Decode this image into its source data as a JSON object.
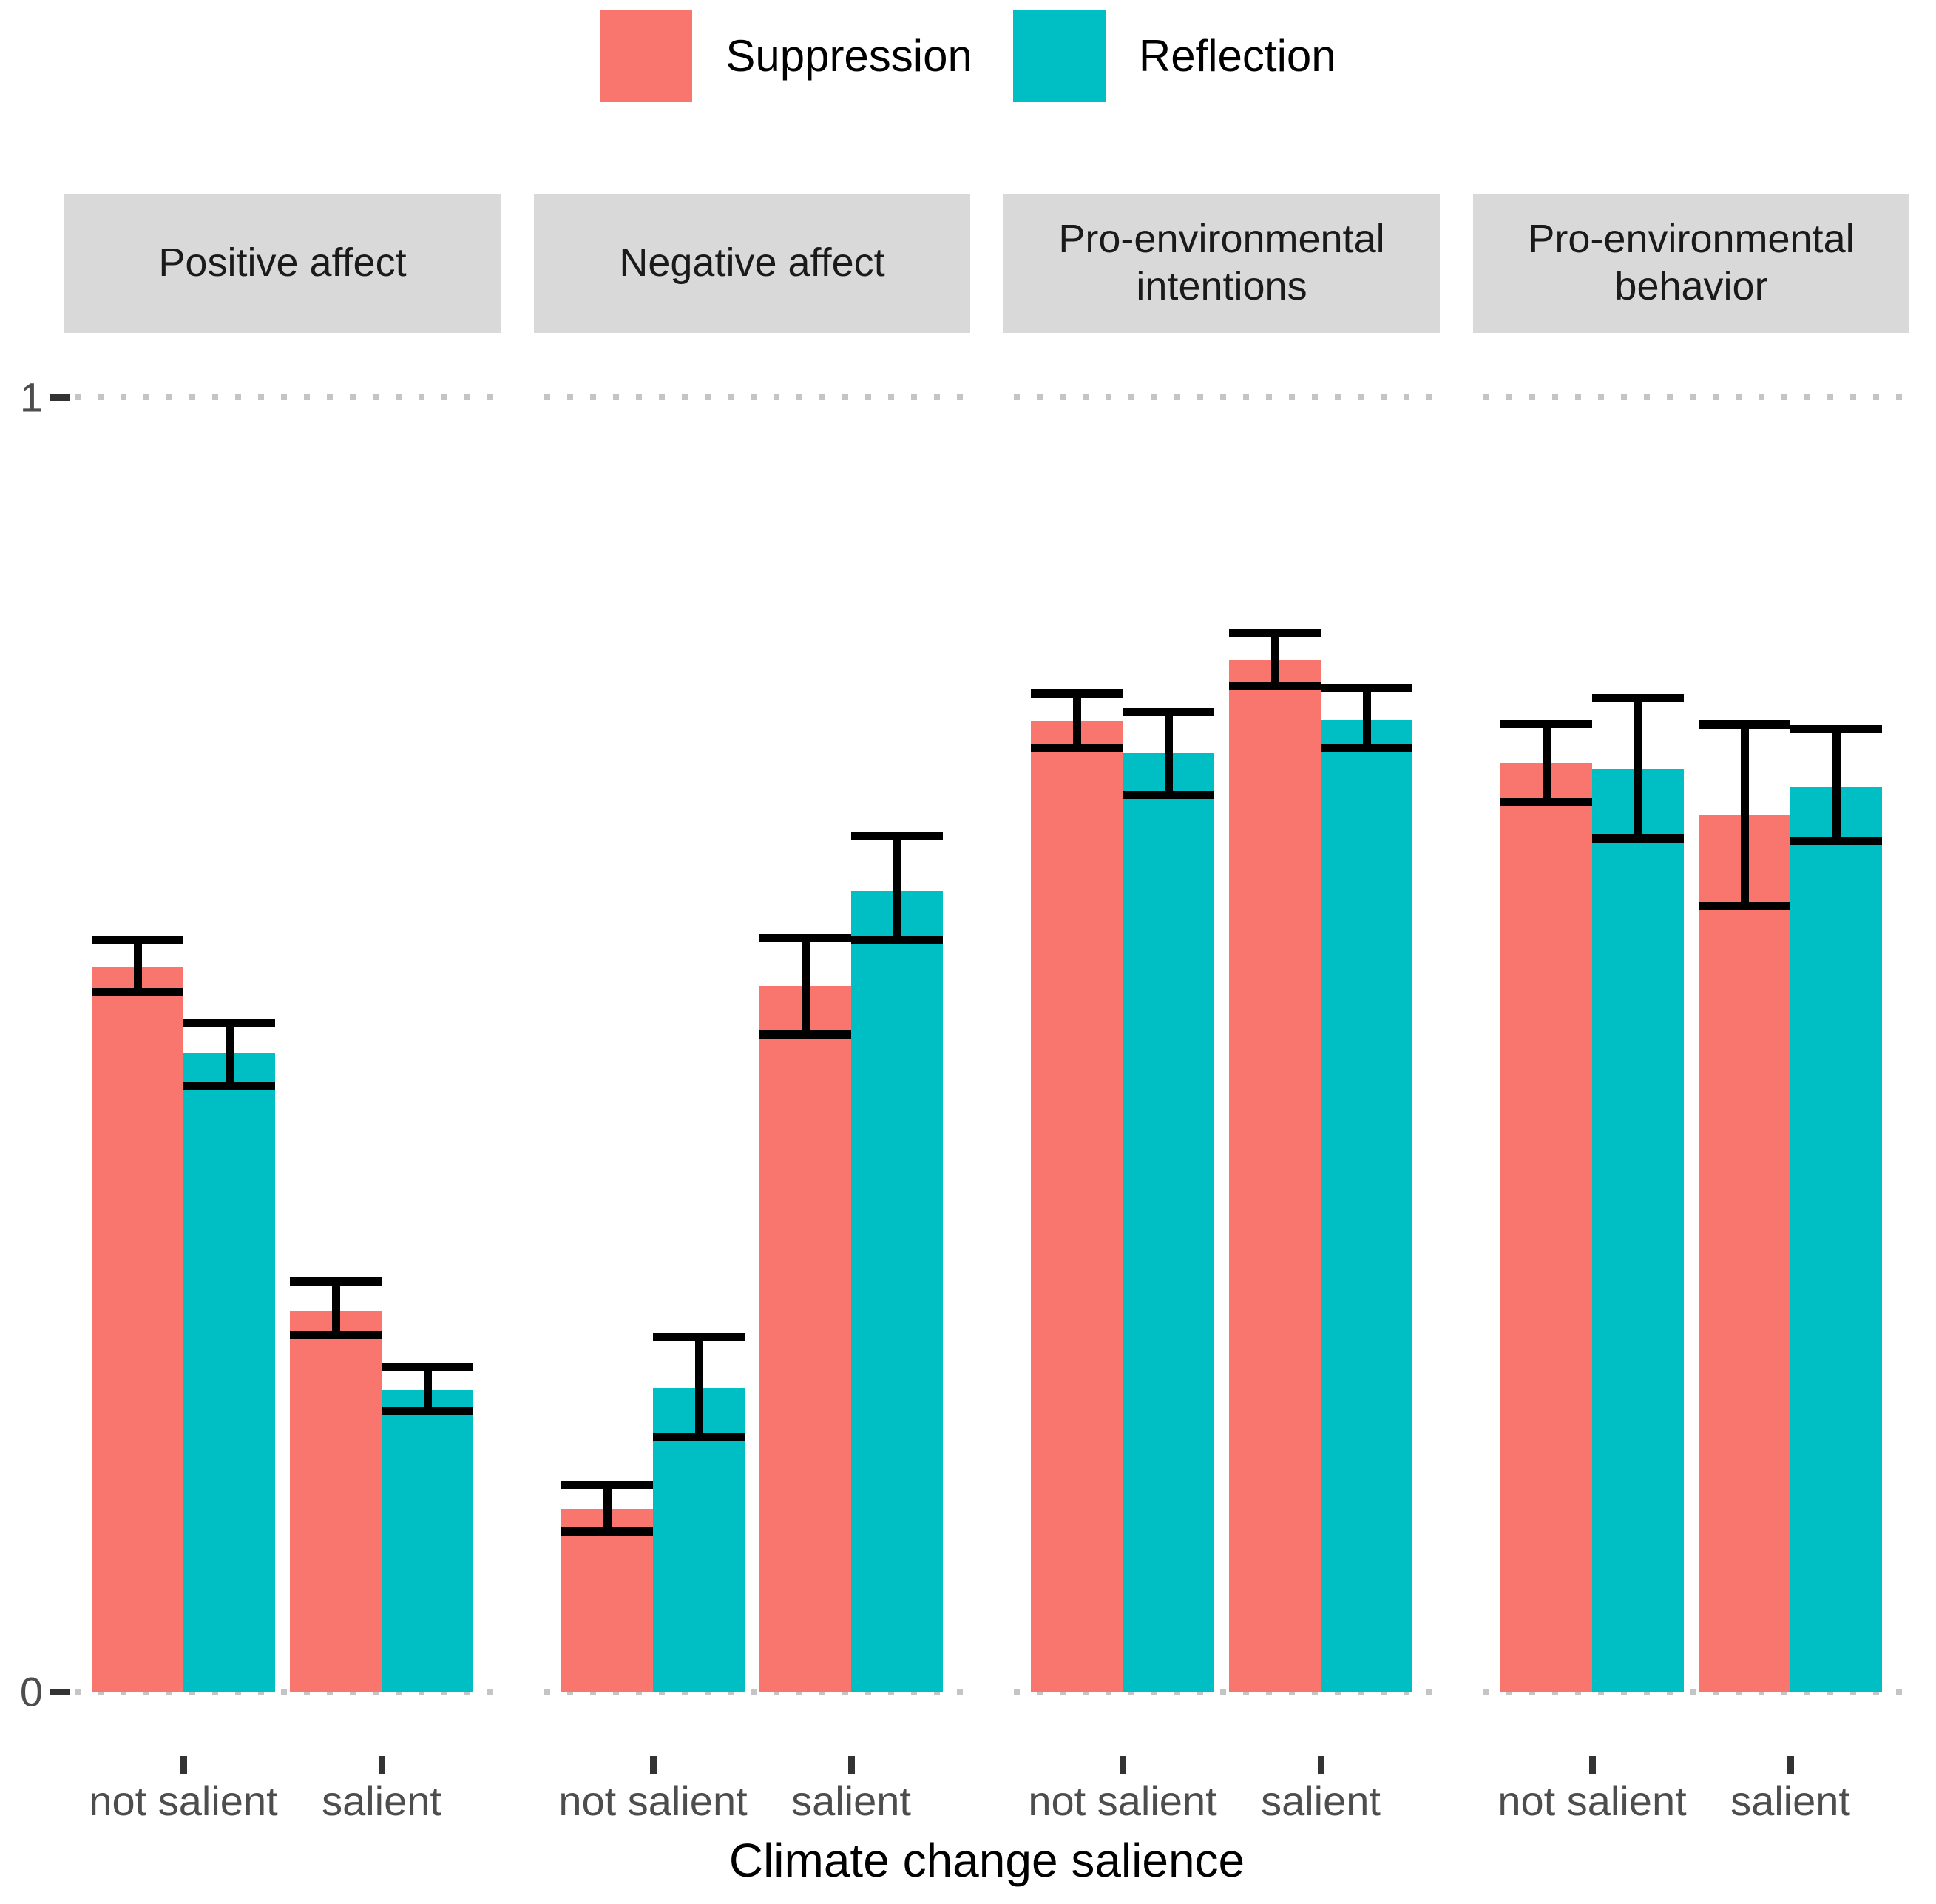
{
  "legend": {
    "items": [
      {
        "label": "Suppression",
        "color": "#F8766D"
      },
      {
        "label": "Reflection",
        "color": "#00BFC4"
      }
    ]
  },
  "axes": {
    "x_title": "Climate change salience",
    "x_categories": [
      "not salient",
      "salient"
    ],
    "y_ticks": [
      {
        "label": "0",
        "value": 0
      },
      {
        "label": "1",
        "value": 1
      }
    ],
    "ylim": [
      0,
      1
    ]
  },
  "chart_data": {
    "type": "bar",
    "layout": "4 facet panels, dodged grouped bars with error bars",
    "legend_position": "top",
    "grid": "dotted horizontal gridlines at y=0 and y=1 only",
    "title": "",
    "xlabel": "Climate change salience",
    "ylabel": "",
    "ylim": [
      0,
      1
    ],
    "categories": [
      "not salient",
      "salient"
    ],
    "colors": {
      "Suppression": "#F8766D",
      "Reflection": "#00BFC4"
    },
    "strip_bg": "#D9D9D9",
    "facets": [
      {
        "label": "Positive affect",
        "series": [
          {
            "name": "Suppression",
            "values": [
              0.56,
              0.294
            ],
            "ci_low": [
              0.541,
              0.276
            ],
            "ci_high": [
              0.581,
              0.317
            ]
          },
          {
            "name": "Reflection",
            "values": [
              0.493,
              0.233
            ],
            "ci_low": [
              0.468,
              0.217
            ],
            "ci_high": [
              0.517,
              0.251
            ]
          }
        ]
      },
      {
        "label": "Negative affect",
        "series": [
          {
            "name": "Suppression",
            "values": [
              0.141,
              0.545
            ],
            "ci_low": [
              0.124,
              0.508
            ],
            "ci_high": [
              0.16,
              0.582
            ]
          },
          {
            "name": "Reflection",
            "values": [
              0.235,
              0.619
            ],
            "ci_low": [
              0.197,
              0.581
            ],
            "ci_high": [
              0.274,
              0.661
            ]
          }
        ]
      },
      {
        "label": "Pro-environmental intentions",
        "series": [
          {
            "name": "Suppression",
            "values": [
              0.75,
              0.797
            ],
            "ci_low": [
              0.729,
              0.777
            ],
            "ci_high": [
              0.771,
              0.818
            ]
          },
          {
            "name": "Reflection",
            "values": [
              0.725,
              0.751
            ],
            "ci_low": [
              0.693,
              0.729
            ],
            "ci_high": [
              0.757,
              0.775
            ]
          }
        ]
      },
      {
        "label": "Pro-environmental behavior",
        "series": [
          {
            "name": "Suppression",
            "values": [
              0.717,
              0.677
            ],
            "ci_low": [
              0.687,
              0.607
            ],
            "ci_high": [
              0.748,
              0.747
            ]
          },
          {
            "name": "Reflection",
            "values": [
              0.713,
              0.699
            ],
            "ci_low": [
              0.659,
              0.657
            ],
            "ci_high": [
              0.768,
              0.744
            ]
          }
        ]
      }
    ]
  }
}
